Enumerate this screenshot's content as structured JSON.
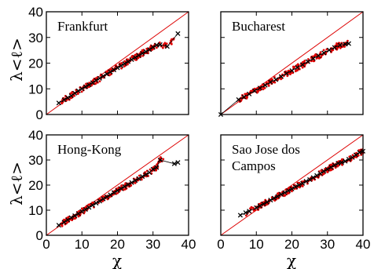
{
  "chart_data": {
    "type": "scatter",
    "layout": "2x2 grid",
    "colors": {
      "data": "#e00000",
      "average": "#000000",
      "diagonal": "#dd0000"
    },
    "xlabel": "χ",
    "ylabel": "λ<ℓ>",
    "xlim": [
      0,
      40
    ],
    "ylim": [
      0,
      40
    ],
    "xticks": [
      0,
      10,
      20,
      30,
      40
    ],
    "yticks": [
      0,
      10,
      20,
      30,
      40
    ],
    "reference_line": "y = x",
    "panels": [
      {
        "title": "Frankfurt",
        "title_lines": [
          "Frankfurt"
        ],
        "averages": [
          [
            3.5,
            4.5
          ],
          [
            5,
            5.7
          ],
          [
            6,
            6.5
          ],
          [
            7,
            7.3
          ],
          [
            8,
            8.3
          ],
          [
            9,
            9.2
          ],
          [
            10,
            10.0
          ],
          [
            11,
            10.8
          ],
          [
            12,
            11.6
          ],
          [
            13,
            12.4
          ],
          [
            14,
            13.3
          ],
          [
            15,
            14.1
          ],
          [
            16,
            14.9
          ],
          [
            17,
            15.8
          ],
          [
            18,
            16.6
          ],
          [
            19,
            17.4
          ],
          [
            20,
            18.2
          ],
          [
            21,
            19.0
          ],
          [
            22,
            19.8
          ],
          [
            23,
            20.6
          ],
          [
            24,
            21.4
          ],
          [
            25,
            22.2
          ],
          [
            26,
            23.0
          ],
          [
            27,
            23.8
          ],
          [
            28,
            24.5
          ],
          [
            29,
            25.3
          ],
          [
            30,
            26.2
          ],
          [
            31,
            27.0
          ],
          [
            32,
            27.2
          ],
          [
            34,
            26.5
          ],
          [
            37,
            31.5
          ]
        ],
        "scatter_range": [
          4,
          36
        ]
      },
      {
        "title": "Bucharest",
        "title_lines": [
          "Bucharest"
        ],
        "averages": [
          [
            0,
            0
          ],
          [
            5,
            5.8
          ],
          [
            6.5,
            6.8
          ],
          [
            8,
            8.0
          ],
          [
            9.5,
            9.2
          ],
          [
            11,
            10.3
          ],
          [
            12.5,
            11.4
          ],
          [
            14,
            12.6
          ],
          [
            15.5,
            13.6
          ],
          [
            17,
            14.8
          ],
          [
            18.5,
            16.0
          ],
          [
            20,
            17.1
          ],
          [
            21.5,
            18.3
          ],
          [
            23,
            19.4
          ],
          [
            24.5,
            20.6
          ],
          [
            26,
            21.8
          ],
          [
            27.5,
            22.9
          ],
          [
            29,
            24.0
          ],
          [
            30.5,
            25.1
          ],
          [
            32,
            26.1
          ],
          [
            33.5,
            27.0
          ],
          [
            35,
            27.4
          ],
          [
            36,
            27.6
          ]
        ],
        "scatter_range": [
          5,
          36
        ]
      },
      {
        "title": "Hong-Kong",
        "title_lines": [
          "Hong-Kong"
        ],
        "averages": [
          [
            3.5,
            4.0
          ],
          [
            5,
            5.2
          ],
          [
            6,
            6.1
          ],
          [
            7,
            7.0
          ],
          [
            8,
            7.8
          ],
          [
            9,
            8.6
          ],
          [
            10,
            9.5
          ],
          [
            11,
            10.3
          ],
          [
            12,
            11.1
          ],
          [
            13,
            12.0
          ],
          [
            14,
            12.8
          ],
          [
            15,
            13.6
          ],
          [
            16,
            14.5
          ],
          [
            17,
            15.3
          ],
          [
            18,
            16.1
          ],
          [
            19,
            17.0
          ],
          [
            20,
            17.8
          ],
          [
            21,
            18.6
          ],
          [
            22,
            19.4
          ],
          [
            23,
            20.2
          ],
          [
            24,
            21.0
          ],
          [
            25,
            21.8
          ],
          [
            26,
            22.6
          ],
          [
            27,
            23.4
          ],
          [
            28,
            24.2
          ],
          [
            29,
            25.0
          ],
          [
            30,
            26.3
          ],
          [
            31,
            27.0
          ],
          [
            32,
            30.0
          ],
          [
            36,
            28.5
          ],
          [
            37,
            29.0
          ]
        ],
        "scatter_range": [
          4,
          33
        ]
      },
      {
        "title": "Sao Jose dos Campos",
        "title_lines": [
          "Sao Jose dos",
          "Campos"
        ],
        "averages": [
          [
            5.5,
            8.0
          ],
          [
            7,
            9.0
          ],
          [
            8,
            9.6
          ],
          [
            10,
            11.0
          ],
          [
            11,
            11.7
          ],
          [
            12,
            12.5
          ],
          [
            13,
            13.2
          ],
          [
            14,
            14.0
          ],
          [
            15,
            14.8
          ],
          [
            16,
            15.5
          ],
          [
            17,
            16.3
          ],
          [
            18,
            17.0
          ],
          [
            19,
            17.8
          ],
          [
            20,
            18.5
          ],
          [
            21,
            19.3
          ],
          [
            22,
            20.0
          ],
          [
            23,
            20.7
          ],
          [
            24,
            21.5
          ],
          [
            25,
            22.2
          ],
          [
            26,
            23.0
          ],
          [
            27,
            23.8
          ],
          [
            28,
            24.6
          ],
          [
            29,
            25.5
          ],
          [
            30,
            26.3
          ],
          [
            31,
            27.1
          ],
          [
            32,
            27.9
          ],
          [
            33,
            28.7
          ],
          [
            34,
            29.0
          ],
          [
            35,
            29.5
          ],
          [
            36,
            30.3
          ],
          [
            37,
            31.0
          ],
          [
            38,
            32.0
          ],
          [
            39,
            33.0
          ],
          [
            40,
            33.5
          ]
        ],
        "scatter_range": [
          7,
          40
        ]
      }
    ]
  }
}
